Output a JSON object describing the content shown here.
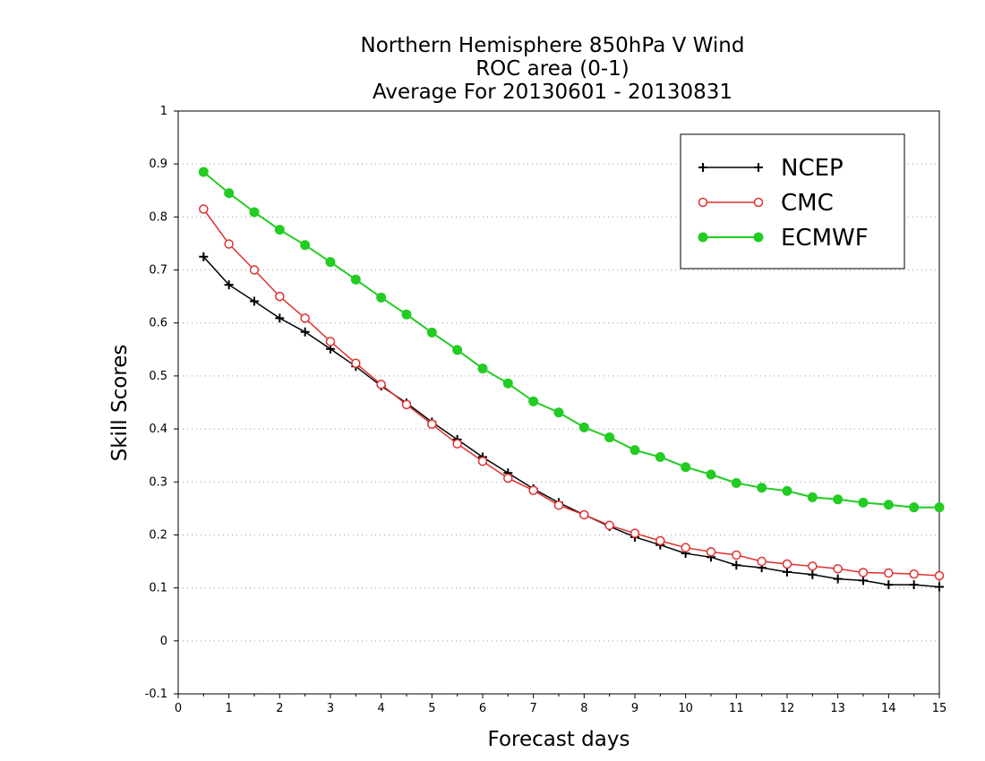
{
  "chart_data": {
    "type": "line",
    "title_lines": [
      "Northern Hemisphere 850hPa V Wind",
      "ROC area (0-1)",
      "Average For 20130601 - 20130831"
    ],
    "xlabel": "Forecast days",
    "ylabel": "Skill Scores",
    "xlim": [
      0,
      15
    ],
    "ylim": [
      -0.1,
      1
    ],
    "x_ticks": [
      0,
      1,
      2,
      3,
      4,
      5,
      6,
      7,
      8,
      9,
      10,
      11,
      12,
      13,
      14,
      15
    ],
    "x_tick_labels": [
      "0",
      "1",
      "2",
      "3",
      "4",
      "5",
      "6",
      "7",
      "8",
      "9",
      "10",
      "11",
      "12",
      "13",
      "14",
      "15"
    ],
    "y_ticks": [
      -0.1,
      0,
      0.1,
      0.2,
      0.3,
      0.4,
      0.5,
      0.6,
      0.7,
      0.8,
      0.9,
      1
    ],
    "y_tick_labels": [
      "-0.1",
      "0",
      "0.1",
      "0.2",
      "0.3",
      "0.4",
      "0.5",
      "0.6",
      "0.7",
      "0.8",
      "0.9",
      "1"
    ],
    "grid": "horizontal dotted",
    "legend_position": "top-right",
    "x": [
      0.5,
      1,
      1.5,
      2,
      2.5,
      3,
      3.5,
      4,
      4.5,
      5,
      5.5,
      6,
      6.5,
      7,
      7.5,
      8,
      8.5,
      9,
      9.5,
      10,
      10.5,
      11,
      11.5,
      12,
      12.5,
      13,
      13.5,
      14,
      14.5,
      15
    ],
    "series": [
      {
        "name": "NCEP",
        "color": "#000000",
        "marker": "plus",
        "values": [
          0.725,
          0.672,
          0.641,
          0.609,
          0.583,
          0.551,
          0.518,
          0.481,
          0.449,
          0.413,
          0.38,
          0.347,
          0.317,
          0.287,
          0.261,
          0.238,
          0.216,
          0.196,
          0.181,
          0.165,
          0.158,
          0.143,
          0.138,
          0.13,
          0.125,
          0.117,
          0.114,
          0.106,
          0.106,
          0.102
        ]
      },
      {
        "name": "CMC",
        "color": "#e03030",
        "marker": "open-circle",
        "values": [
          0.815,
          0.749,
          0.7,
          0.65,
          0.609,
          0.565,
          0.524,
          0.484,
          0.446,
          0.409,
          0.372,
          0.339,
          0.307,
          0.284,
          0.256,
          0.238,
          0.218,
          0.203,
          0.189,
          0.176,
          0.168,
          0.162,
          0.15,
          0.145,
          0.141,
          0.136,
          0.129,
          0.128,
          0.126,
          0.123
        ]
      },
      {
        "name": "ECMWF",
        "color": "#22cc22",
        "marker": "filled-circle",
        "values": [
          0.885,
          0.845,
          0.809,
          0.776,
          0.747,
          0.715,
          0.682,
          0.648,
          0.616,
          0.582,
          0.549,
          0.514,
          0.486,
          0.452,
          0.431,
          0.403,
          0.384,
          0.36,
          0.347,
          0.328,
          0.314,
          0.298,
          0.289,
          0.283,
          0.271,
          0.267,
          0.261,
          0.257,
          0.252,
          0.252
        ]
      }
    ]
  }
}
